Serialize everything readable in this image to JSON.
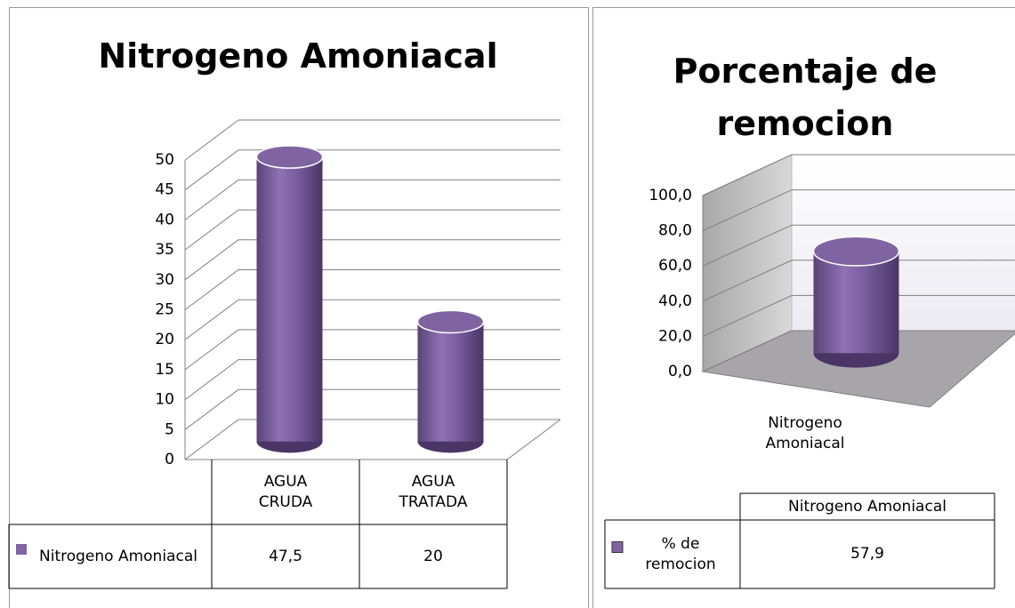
{
  "chart_data": [
    {
      "type": "bar3d",
      "title": "Nitrogeno Amoniacal",
      "categories": [
        "AGUA CRUDA",
        "AGUA TRATADA"
      ],
      "series": [
        {
          "name": "Nitrogeno Amoniacal",
          "color": "#8064a2",
          "values": [
            47.5,
            20
          ],
          "value_labels": [
            "47,5",
            "20"
          ]
        }
      ],
      "ylim": [
        0,
        50
      ],
      "yticks": [
        0,
        5,
        10,
        15,
        20,
        25,
        30,
        35,
        40,
        45,
        50
      ],
      "grid": true,
      "legend": "table"
    },
    {
      "type": "bar3d",
      "title": "Porcentaje de remocion",
      "categories": [
        "Nitrogeno Amoniacal"
      ],
      "series": [
        {
          "name": "% de remocion",
          "color": "#8064a2",
          "values": [
            57.9
          ],
          "value_labels": [
            "57,9"
          ]
        }
      ],
      "ylim": [
        0,
        100
      ],
      "yticks": [
        {
          "value": 0,
          "label": "0,0"
        },
        {
          "value": 20,
          "label": "20,0"
        },
        {
          "value": 40,
          "label": "40,0"
        },
        {
          "value": 60,
          "label": "60,0"
        },
        {
          "value": 80,
          "label": "80,0"
        },
        {
          "value": 100,
          "label": "100,0"
        }
      ],
      "grid": true,
      "legend": "table"
    }
  ]
}
